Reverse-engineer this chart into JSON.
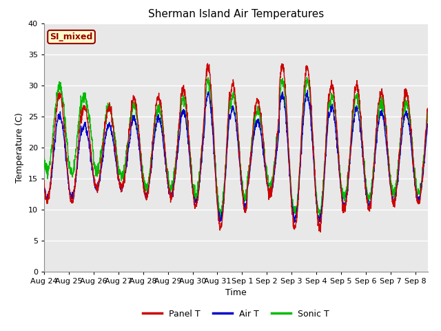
{
  "title": "Sherman Island Air Temperatures",
  "xlabel": "Time",
  "ylabel": "Temperature (C)",
  "ylim": [
    0,
    40
  ],
  "yticks": [
    0,
    5,
    10,
    15,
    20,
    25,
    30,
    35,
    40
  ],
  "background_color": "#e8e8e8",
  "fig_color": "#ffffff",
  "panel_color": "#cc0000",
  "air_color": "#0000cc",
  "sonic_color": "#00bb00",
  "annotation_text": "SI_mixed",
  "annotation_bg": "#ffffcc",
  "annotation_fg": "#990000",
  "x_labels": [
    "Aug 24",
    "Aug 25",
    "Aug 26",
    "Aug 27",
    "Aug 28",
    "Aug 29",
    "Aug 30",
    "Aug 31",
    "Sep 1",
    "Sep 2",
    "Sep 3",
    "Sep 4",
    "Sep 5",
    "Sep 6",
    "Sep 7",
    "Sep 8"
  ],
  "legend_labels": [
    "Panel T",
    "Air T",
    "Sonic T"
  ],
  "n_days": 15.5,
  "n_points": 2000
}
